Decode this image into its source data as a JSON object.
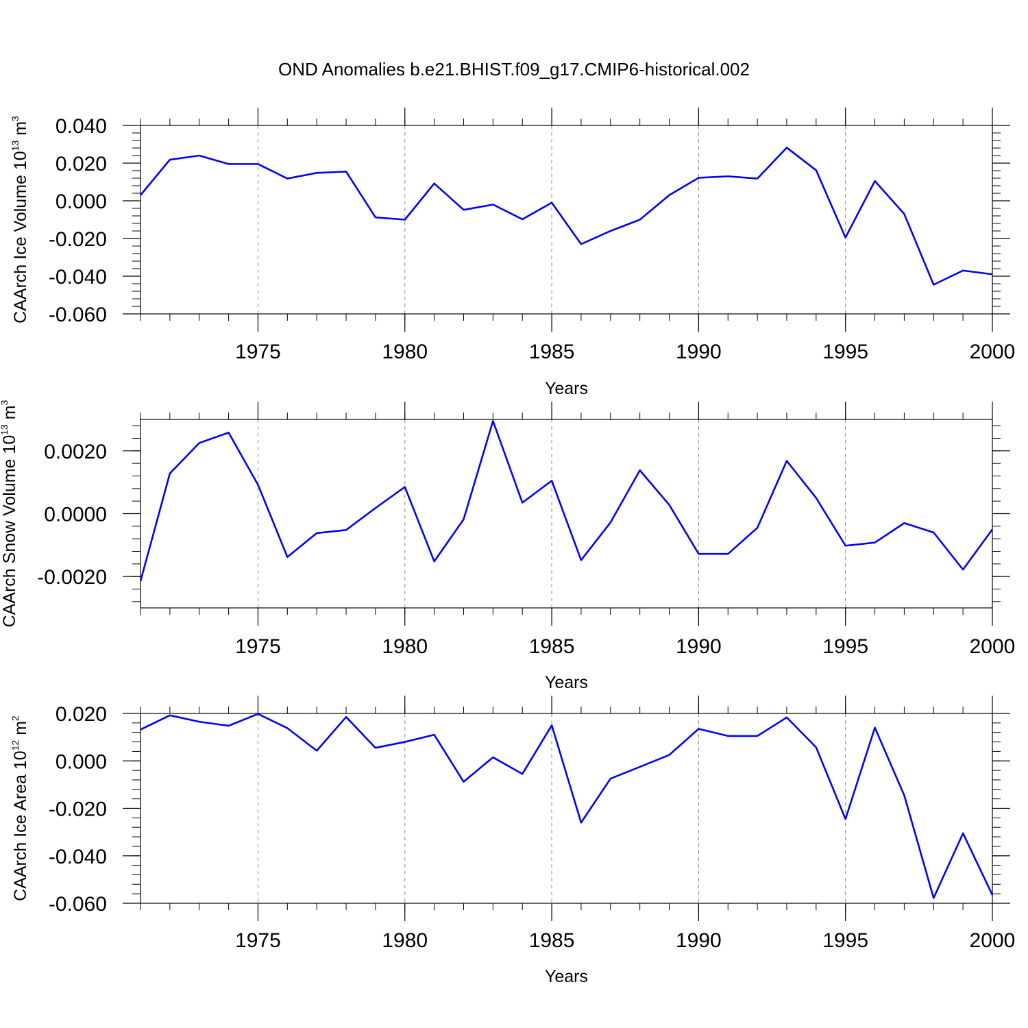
{
  "title": "OND Anomalies b.e21.BHIST.f09_g17.CMIP6-historical.002",
  "colors": {
    "line": "#0000ff",
    "axis": "#000000",
    "grid": "#888888"
  },
  "chart_data": [
    {
      "type": "line",
      "name": "ice-volume",
      "ylabel": "CAArch Ice Volume 10",
      "ylabel_exp": "13",
      "ylabel_unit": " m",
      "ylabel_unit_exp": "3",
      "xlabel": "Years",
      "xlim": [
        1971,
        2000
      ],
      "ylim": [
        -0.06,
        0.04
      ],
      "xticks": [
        1975,
        1980,
        1985,
        1990,
        1995,
        2000
      ],
      "yticks": [
        0.04,
        0.02,
        0.0,
        -0.02,
        -0.04,
        -0.06
      ],
      "ytick_labels": [
        "0.040",
        "0.020",
        "0.000",
        "-0.020",
        "-0.040",
        "-0.060"
      ],
      "grid_x": true,
      "x": [
        1971,
        1972,
        1973,
        1974,
        1975,
        1976,
        1977,
        1978,
        1979,
        1980,
        1981,
        1982,
        1983,
        1984,
        1985,
        1986,
        1987,
        1988,
        1989,
        1990,
        1991,
        1992,
        1993,
        1994,
        1995,
        1996,
        1997,
        1998,
        1999,
        2000
      ],
      "values": [
        0.003,
        0.0218,
        0.024,
        0.0195,
        0.0195,
        0.0118,
        0.0148,
        0.0155,
        -0.0088,
        -0.01,
        0.0092,
        -0.0048,
        -0.002,
        -0.0098,
        -0.001,
        -0.023,
        -0.016,
        -0.01,
        0.003,
        0.0122,
        0.013,
        0.0118,
        0.0282,
        0.0162,
        -0.0195,
        0.0105,
        -0.007,
        -0.0445,
        -0.037,
        -0.039
      ]
    },
    {
      "type": "line",
      "name": "snow-volume",
      "ylabel": "CAArch Snow Volume 10",
      "ylabel_exp": "13",
      "ylabel_unit": " m",
      "ylabel_unit_exp": "3",
      "xlabel": "Years",
      "xlim": [
        1971,
        2000
      ],
      "ylim": [
        -0.003,
        0.003
      ],
      "xticks": [
        1975,
        1980,
        1985,
        1990,
        1995,
        2000
      ],
      "yticks": [
        0.002,
        0.0,
        -0.002
      ],
      "ytick_labels": [
        "0.0020",
        "0.0000",
        "-0.0020"
      ],
      "grid_x": true,
      "x": [
        1971,
        1972,
        1973,
        1974,
        1975,
        1976,
        1977,
        1978,
        1979,
        1980,
        1981,
        1982,
        1983,
        1984,
        1985,
        1986,
        1987,
        1988,
        1989,
        1990,
        1991,
        1992,
        1993,
        1994,
        1995,
        1996,
        1997,
        1998,
        1999,
        2000
      ],
      "values": [
        -0.00215,
        0.00128,
        0.00225,
        0.00258,
        0.00092,
        -0.00138,
        -0.00062,
        -0.00052,
        0.00018,
        0.00085,
        -0.00152,
        -0.00018,
        0.00295,
        0.00035,
        0.00105,
        -0.00148,
        -0.00028,
        0.00138,
        0.00028,
        -0.00128,
        -0.00128,
        -0.00045,
        0.00168,
        0.0005,
        -0.00102,
        -0.00092,
        -0.0003,
        -0.0006,
        -0.00178,
        -0.0005
      ]
    },
    {
      "type": "line",
      "name": "ice-area",
      "ylabel": "CAArch Ice Area 10",
      "ylabel_exp": "12",
      "ylabel_unit": " m",
      "ylabel_unit_exp": "2",
      "xlabel": "Years",
      "xlim": [
        1971,
        2000
      ],
      "ylim": [
        -0.06,
        0.02
      ],
      "xticks": [
        1975,
        1980,
        1985,
        1990,
        1995,
        2000
      ],
      "yticks": [
        0.02,
        0.0,
        -0.02,
        -0.04,
        -0.06
      ],
      "ytick_labels": [
        "0.020",
        "0.000",
        "-0.020",
        "-0.040",
        "-0.060"
      ],
      "grid_x": true,
      "x": [
        1971,
        1972,
        1973,
        1974,
        1975,
        1976,
        1977,
        1978,
        1979,
        1980,
        1981,
        1982,
        1983,
        1984,
        1985,
        1986,
        1987,
        1988,
        1989,
        1990,
        1991,
        1992,
        1993,
        1994,
        1995,
        1996,
        1997,
        1998,
        1999,
        2000
      ],
      "values": [
        0.0132,
        0.0192,
        0.0165,
        0.0148,
        0.0198,
        0.0138,
        0.0043,
        0.0185,
        0.0055,
        0.008,
        0.011,
        -0.0088,
        0.0015,
        -0.0055,
        0.015,
        -0.026,
        -0.0075,
        -0.0025,
        0.0025,
        0.0135,
        0.0105,
        0.0105,
        0.0183,
        0.0057,
        -0.0245,
        0.014,
        -0.0145,
        -0.0578,
        -0.0305,
        -0.0565
      ]
    }
  ]
}
